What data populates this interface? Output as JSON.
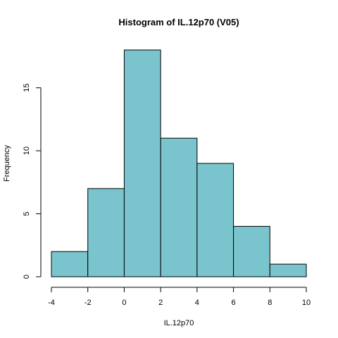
{
  "chart_data": {
    "type": "bar",
    "title": "Histogram of IL.12p70 (V05)",
    "xlabel": "IL.12p70",
    "ylabel": "Frequency",
    "bins": [
      {
        "x0": -4,
        "x1": -2,
        "count": 2
      },
      {
        "x0": -2,
        "x1": 0,
        "count": 7
      },
      {
        "x0": 0,
        "x1": 2,
        "count": 18
      },
      {
        "x0": 2,
        "x1": 4,
        "count": 11
      },
      {
        "x0": 4,
        "x1": 6,
        "count": 9
      },
      {
        "x0": 6,
        "x1": 8,
        "count": 4
      },
      {
        "x0": 8,
        "x1": 10,
        "count": 1
      }
    ],
    "xlim": [
      -4,
      10
    ],
    "ylim": [
      0,
      18
    ],
    "xticks": [
      -4,
      -2,
      0,
      2,
      4,
      6,
      8,
      10
    ],
    "yticks": [
      0,
      5,
      10,
      15
    ],
    "bar_color": "#7ac5cd",
    "grid": false
  }
}
